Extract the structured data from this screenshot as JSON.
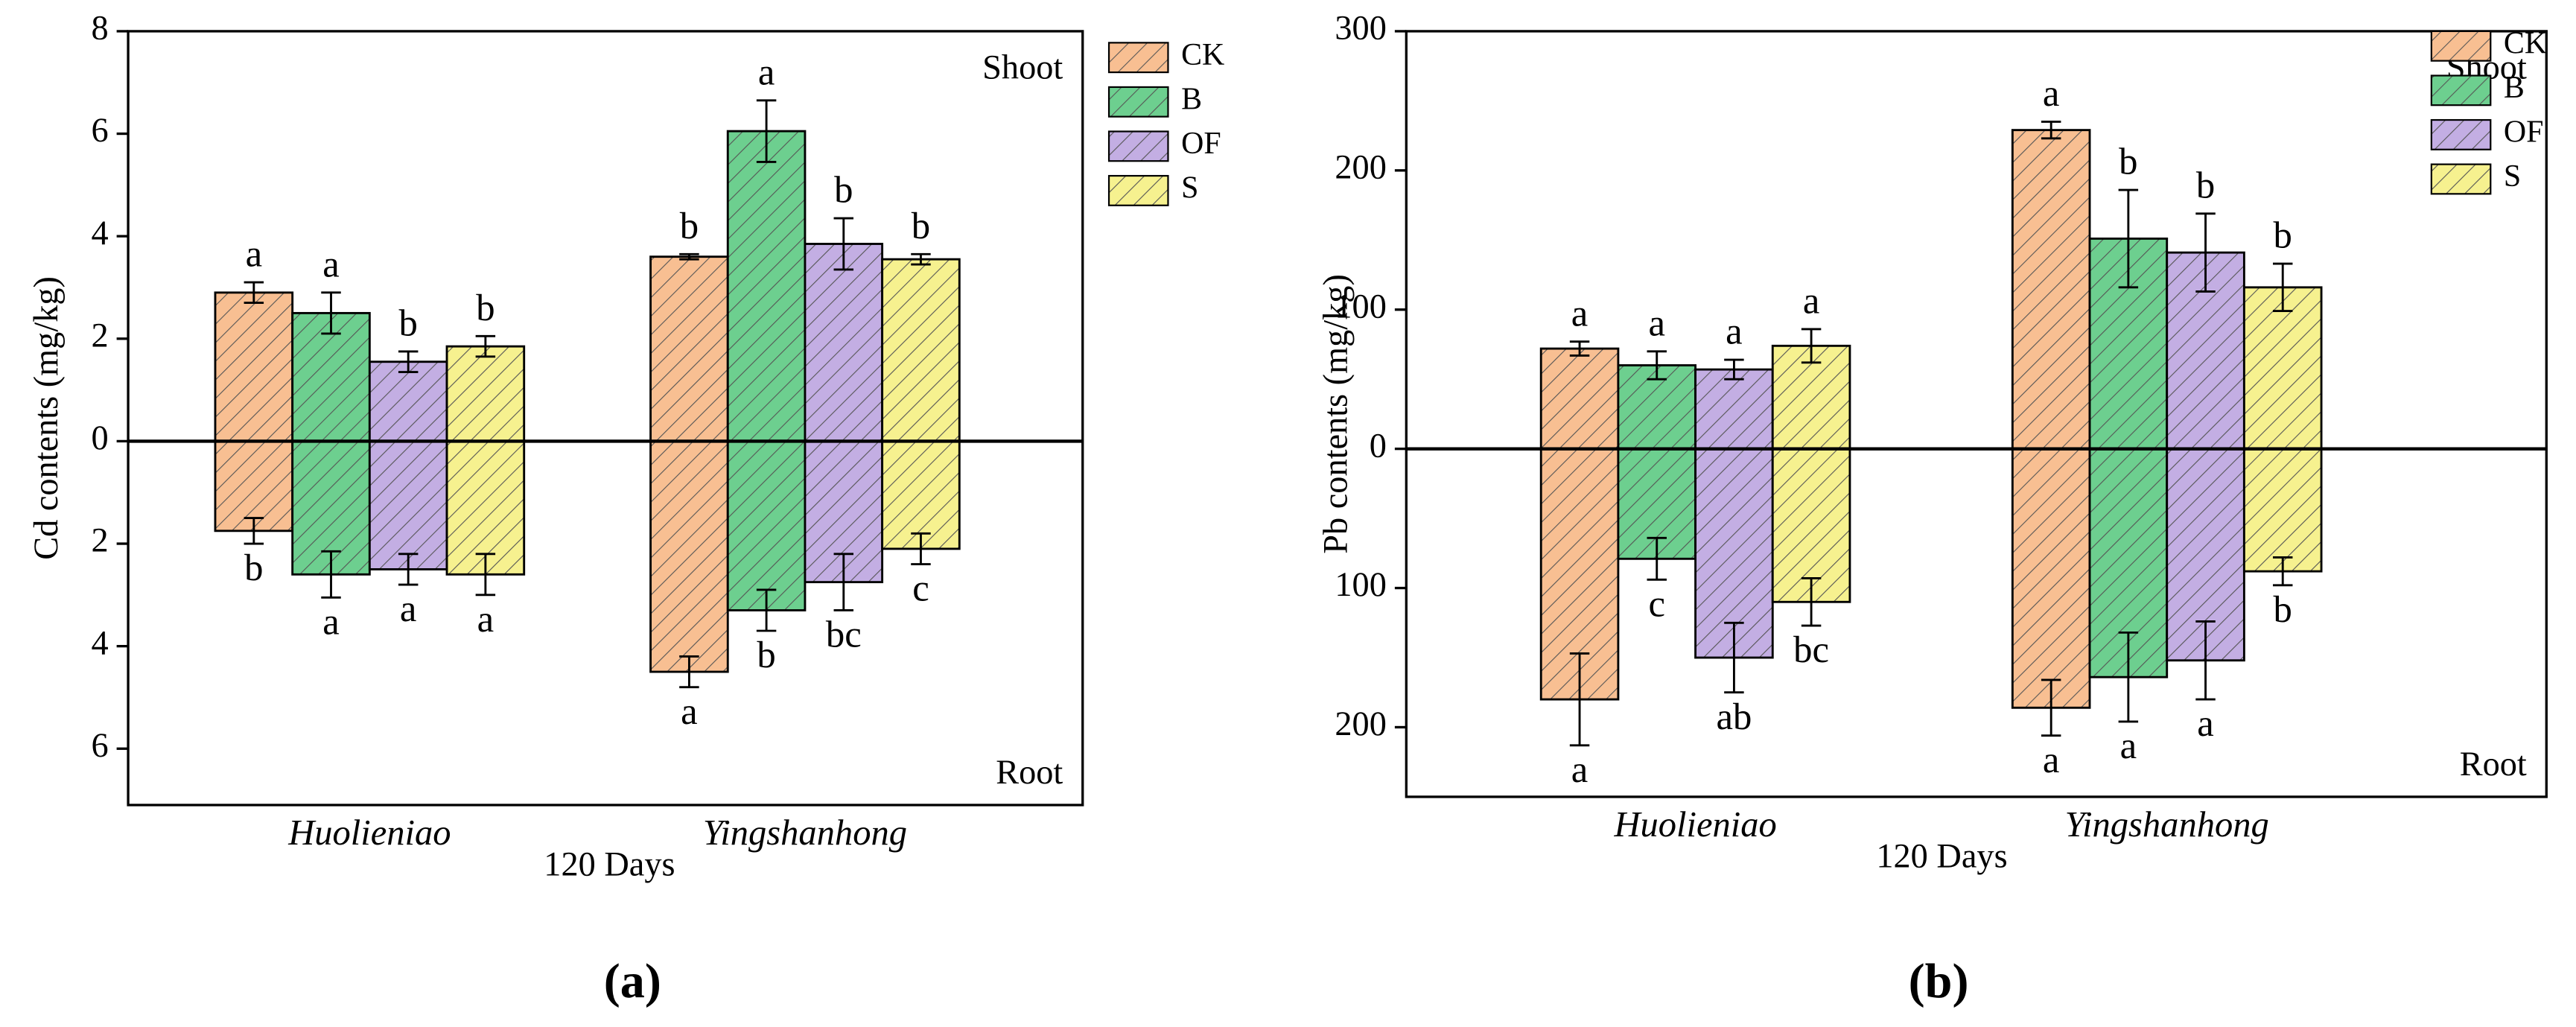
{
  "chart_data": [
    {
      "type": "bar",
      "ylabel": "Cd contents (mg/kg)",
      "xlabel": "120 Days",
      "panel_label": "(a)",
      "annotations": [
        "Shoot",
        "Root"
      ],
      "categories": [
        "Huolieniao",
        "Yingshanhong"
      ],
      "ylim": [
        -7.1,
        8
      ],
      "yticks": [
        {
          "value": -6,
          "label": "6"
        },
        {
          "value": -4,
          "label": "4"
        },
        {
          "value": -2,
          "label": "2"
        },
        0,
        2,
        4,
        6,
        8
      ],
      "series": [
        {
          "name": "CK",
          "color": "#f8bf92",
          "values": [
            2.9,
            3.6
          ],
          "errors": [
            0.2,
            0.05
          ],
          "letters": [
            "a",
            "b"
          ],
          "root_values": [
            -1.75,
            -4.5
          ],
          "root_errors": [
            0.25,
            0.3
          ],
          "root_letters": [
            "b",
            "a"
          ]
        },
        {
          "name": "B",
          "color": "#6dcf8f",
          "values": [
            2.5,
            6.05
          ],
          "errors": [
            0.4,
            0.6
          ],
          "letters": [
            "a",
            "a"
          ],
          "root_values": [
            -2.6,
            -3.3
          ],
          "root_errors": [
            0.45,
            0.4
          ],
          "root_letters": [
            "a",
            "b"
          ]
        },
        {
          "name": "OF",
          "color": "#c3aee3",
          "values": [
            1.55,
            3.85
          ],
          "errors": [
            0.2,
            0.5
          ],
          "letters": [
            "b",
            "b"
          ],
          "root_values": [
            -2.5,
            -2.75
          ],
          "root_errors": [
            0.3,
            0.55
          ],
          "root_letters": [
            "a",
            "bc"
          ]
        },
        {
          "name": "S",
          "color": "#f6f18f",
          "values": [
            1.85,
            3.55
          ],
          "errors": [
            0.2,
            0.1
          ],
          "letters": [
            "b",
            "b"
          ],
          "root_values": [
            -2.6,
            -2.1
          ],
          "root_errors": [
            0.4,
            0.3
          ],
          "root_letters": [
            "a",
            "c"
          ]
        }
      ]
    },
    {
      "type": "bar",
      "ylabel": "Pb contents (mg/kg)",
      "xlabel": "120 Days",
      "panel_label": "(b)",
      "annotations": [
        "Shoot",
        "Root"
      ],
      "categories": [
        "Huolieniao",
        "Yingshanhong"
      ],
      "ylim": [
        -250,
        300
      ],
      "yticks": [
        {
          "value": -200,
          "label": "200"
        },
        {
          "value": -100,
          "label": "100"
        },
        0,
        100,
        200,
        300
      ],
      "series": [
        {
          "name": "CK",
          "color": "#f8bf92",
          "values": [
            72,
            229
          ],
          "errors": [
            5,
            6
          ],
          "letters": [
            "a",
            "a"
          ],
          "root_values": [
            -180,
            -186
          ],
          "root_errors": [
            33,
            20
          ],
          "root_letters": [
            "a",
            "a"
          ]
        },
        {
          "name": "B",
          "color": "#6dcf8f",
          "values": [
            60,
            151
          ],
          "errors": [
            10,
            35
          ],
          "letters": [
            "a",
            "b"
          ],
          "root_values": [
            -79,
            -164
          ],
          "root_errors": [
            15,
            32
          ],
          "root_letters": [
            "c",
            "a"
          ]
        },
        {
          "name": "OF",
          "color": "#c3aee3",
          "values": [
            57,
            141
          ],
          "errors": [
            7,
            28
          ],
          "letters": [
            "a",
            "b"
          ],
          "root_values": [
            -150,
            -152
          ],
          "root_errors": [
            25,
            28
          ],
          "root_letters": [
            "ab",
            "a"
          ]
        },
        {
          "name": "S",
          "color": "#f6f18f",
          "values": [
            74,
            116
          ],
          "errors": [
            12,
            17
          ],
          "letters": [
            "a",
            "b"
          ],
          "root_values": [
            -110,
            -88
          ],
          "root_errors": [
            17,
            10
          ],
          "root_letters": [
            "bc",
            "b"
          ]
        }
      ]
    }
  ]
}
